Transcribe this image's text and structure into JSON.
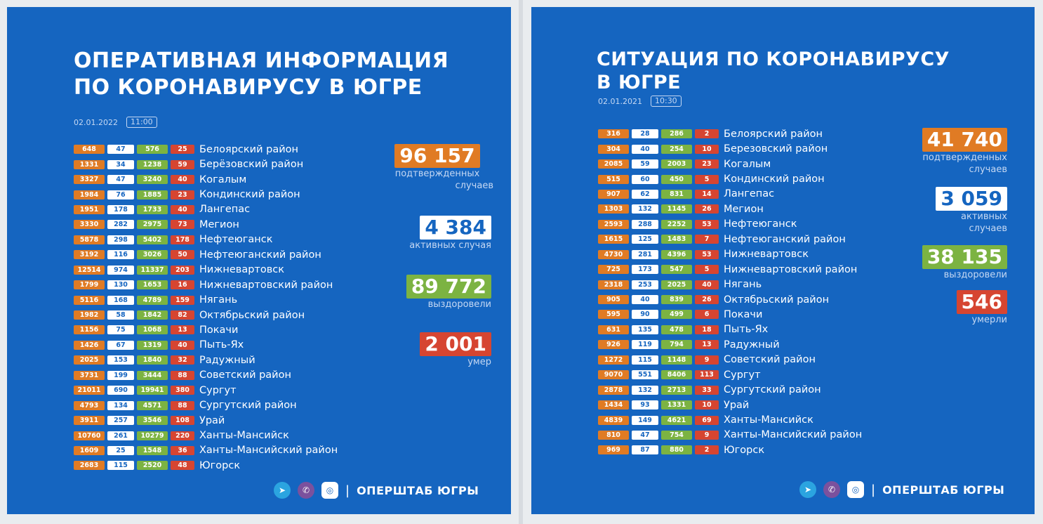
{
  "left": {
    "title_line1": "ОПЕРАТИВНАЯ ИНФОРМАЦИЯ",
    "title_line2": "ПО КОРОНАВИРУСУ В ЮГРЕ",
    "date": "02.01.2022",
    "time": "11:00",
    "rows": [
      {
        "conf": "648",
        "act": "47",
        "rec": "576",
        "dead": "25",
        "name": "Белоярский район"
      },
      {
        "conf": "1331",
        "act": "34",
        "rec": "1238",
        "dead": "59",
        "name": "Берёзовский район"
      },
      {
        "conf": "3327",
        "act": "47",
        "rec": "3240",
        "dead": "40",
        "name": "Когалым"
      },
      {
        "conf": "1984",
        "act": "76",
        "rec": "1885",
        "dead": "23",
        "name": "Кондинский район"
      },
      {
        "conf": "1951",
        "act": "178",
        "rec": "1733",
        "dead": "40",
        "name": "Лангепас"
      },
      {
        "conf": "3330",
        "act": "282",
        "rec": "2975",
        "dead": "73",
        "name": "Мегион"
      },
      {
        "conf": "5878",
        "act": "298",
        "rec": "5402",
        "dead": "178",
        "name": "Нефтеюганск"
      },
      {
        "conf": "3192",
        "act": "116",
        "rec": "3026",
        "dead": "50",
        "name": "Нефтеюганский район"
      },
      {
        "conf": "12514",
        "act": "974",
        "rec": "11337",
        "dead": "203",
        "name": "Нижневартовск"
      },
      {
        "conf": "1799",
        "act": "130",
        "rec": "1653",
        "dead": "16",
        "name": "Нижневартовский район"
      },
      {
        "conf": "5116",
        "act": "168",
        "rec": "4789",
        "dead": "159",
        "name": "Нягань"
      },
      {
        "conf": "1982",
        "act": "58",
        "rec": "1842",
        "dead": "82",
        "name": "Октябрьский район"
      },
      {
        "conf": "1156",
        "act": "75",
        "rec": "1068",
        "dead": "13",
        "name": "Покачи"
      },
      {
        "conf": "1426",
        "act": "67",
        "rec": "1319",
        "dead": "40",
        "name": "Пыть-Ях"
      },
      {
        "conf": "2025",
        "act": "153",
        "rec": "1840",
        "dead": "32",
        "name": "Радужный"
      },
      {
        "conf": "3731",
        "act": "199",
        "rec": "3444",
        "dead": "88",
        "name": "Советский район"
      },
      {
        "conf": "21011",
        "act": "690",
        "rec": "19941",
        "dead": "380",
        "name": "Сургут"
      },
      {
        "conf": "4793",
        "act": "134",
        "rec": "4571",
        "dead": "88",
        "name": "Сургутский район"
      },
      {
        "conf": "3911",
        "act": "257",
        "rec": "3546",
        "dead": "108",
        "name": "Урай"
      },
      {
        "conf": "10760",
        "act": "261",
        "rec": "10279",
        "dead": "220",
        "name": "Ханты-Мансийск"
      },
      {
        "conf": "1609",
        "act": "25",
        "rec": "1548",
        "dead": "36",
        "name": "Ханты-Мансийский район"
      },
      {
        "conf": "2683",
        "act": "115",
        "rec": "2520",
        "dead": "48",
        "name": "Югорск"
      }
    ],
    "stats": {
      "confirmed": {
        "value": "96 157",
        "label_line1": "подтвержденных",
        "label_line2": "случаев"
      },
      "active": {
        "value": "4 384",
        "label": "активных случая"
      },
      "recovered": {
        "value": "89 772",
        "label": "выздоровели"
      },
      "deaths": {
        "value": "2 001",
        "label": "умер"
      }
    }
  },
  "right": {
    "title_line1": "СИТУАЦИЯ ПО КОРОНАВИРУСУ",
    "title_line2": "В ЮГРЕ",
    "date": "02.01.2021",
    "time": "10:30",
    "rows": [
      {
        "conf": "316",
        "act": "28",
        "rec": "286",
        "dead": "2",
        "name": "Белоярский район"
      },
      {
        "conf": "304",
        "act": "40",
        "rec": "254",
        "dead": "10",
        "name": "Березовский район"
      },
      {
        "conf": "2085",
        "act": "59",
        "rec": "2003",
        "dead": "23",
        "name": "Когалым"
      },
      {
        "conf": "515",
        "act": "60",
        "rec": "450",
        "dead": "5",
        "name": "Кондинский район"
      },
      {
        "conf": "907",
        "act": "62",
        "rec": "831",
        "dead": "14",
        "name": "Лангепас"
      },
      {
        "conf": "1303",
        "act": "132",
        "rec": "1145",
        "dead": "26",
        "name": "Мегион"
      },
      {
        "conf": "2593",
        "act": "288",
        "rec": "2252",
        "dead": "53",
        "name": "Нефтеюганск"
      },
      {
        "conf": "1615",
        "act": "125",
        "rec": "1483",
        "dead": "7",
        "name": "Нефтеюганский район"
      },
      {
        "conf": "4730",
        "act": "281",
        "rec": "4396",
        "dead": "53",
        "name": "Нижневартовск"
      },
      {
        "conf": "725",
        "act": "173",
        "rec": "547",
        "dead": "5",
        "name": "Нижневартовский район"
      },
      {
        "conf": "2318",
        "act": "253",
        "rec": "2025",
        "dead": "40",
        "name": "Нягань"
      },
      {
        "conf": "905",
        "act": "40",
        "rec": "839",
        "dead": "26",
        "name": "Октябрьский район"
      },
      {
        "conf": "595",
        "act": "90",
        "rec": "499",
        "dead": "6",
        "name": "Покачи"
      },
      {
        "conf": "631",
        "act": "135",
        "rec": "478",
        "dead": "18",
        "name": "Пыть-Ях"
      },
      {
        "conf": "926",
        "act": "119",
        "rec": "794",
        "dead": "13",
        "name": "Радужный"
      },
      {
        "conf": "1272",
        "act": "115",
        "rec": "1148",
        "dead": "9",
        "name": "Советский район"
      },
      {
        "conf": "9070",
        "act": "551",
        "rec": "8406",
        "dead": "113",
        "name": "Сургут"
      },
      {
        "conf": "2878",
        "act": "132",
        "rec": "2713",
        "dead": "33",
        "name": "Сургутский район"
      },
      {
        "conf": "1434",
        "act": "93",
        "rec": "1331",
        "dead": "10",
        "name": "Урай"
      },
      {
        "conf": "4839",
        "act": "149",
        "rec": "4621",
        "dead": "69",
        "name": "Ханты-Мансийск"
      },
      {
        "conf": "810",
        "act": "47",
        "rec": "754",
        "dead": "9",
        "name": "Ханты-Мансийский район"
      },
      {
        "conf": "969",
        "act": "87",
        "rec": "880",
        "dead": "2",
        "name": "Югорск"
      }
    ],
    "stats": {
      "confirmed": {
        "value": "41 740",
        "label_line1": "подтвержденных",
        "label_line2": "случаев"
      },
      "active": {
        "value": "3 059",
        "label_line1": "активных",
        "label_line2": "случаев"
      },
      "recovered": {
        "value": "38 135",
        "label": "выздоровели"
      },
      "deaths": {
        "value": "546",
        "label": "умерли"
      }
    }
  },
  "footer": {
    "text": "ОПЕРШТАБ ЮГРЫ",
    "separator": "|",
    "icons": [
      "telegram-icon",
      "viber-icon",
      "vk-icon"
    ]
  },
  "colors": {
    "background": "#1565c0",
    "confirmed": "#e07b24",
    "active": "#ffffff",
    "recovered": "#7cb342",
    "deaths": "#d64531"
  }
}
